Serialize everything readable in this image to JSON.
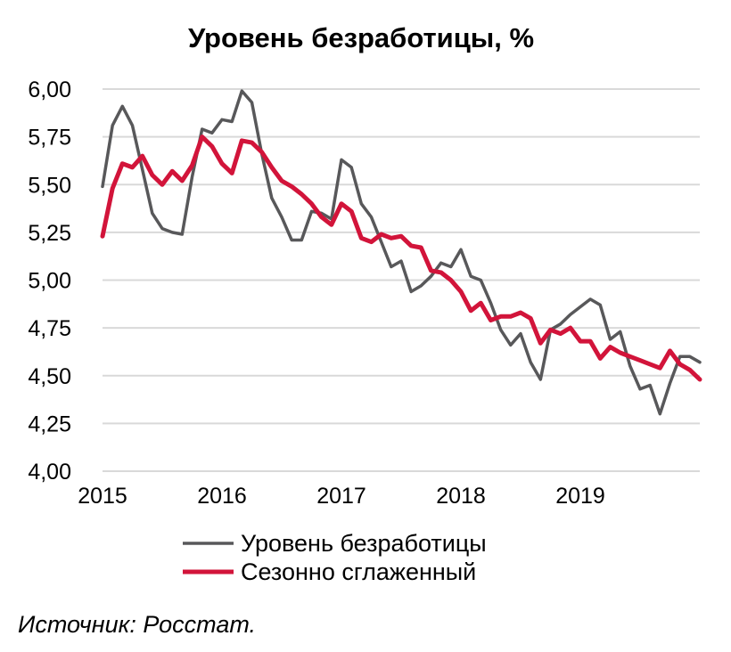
{
  "chart_data": {
    "type": "line",
    "title": "Уровень безработицы, %",
    "xlabel": "",
    "ylabel": "",
    "ylim": [
      4.0,
      6.0
    ],
    "y_ticks": [
      "4,00",
      "4,25",
      "4,50",
      "4,75",
      "5,00",
      "5,25",
      "5,50",
      "5,75",
      "6,00"
    ],
    "x_ticks": [
      "2015",
      "2016",
      "2017",
      "2018",
      "2019"
    ],
    "x_range": [
      2015.0,
      2020.0
    ],
    "grid": "horizontal",
    "legend_position": "bottom",
    "series": [
      {
        "name": "Уровень безработицы",
        "color": "#58585a",
        "values": [
          5.49,
          5.81,
          5.91,
          5.81,
          5.58,
          5.35,
          5.27,
          5.25,
          5.24,
          5.54,
          5.79,
          5.77,
          5.84,
          5.83,
          5.99,
          5.93,
          5.66,
          5.43,
          5.33,
          5.21,
          5.21,
          5.36,
          5.35,
          5.32,
          5.63,
          5.59,
          5.4,
          5.33,
          5.2,
          5.07,
          5.1,
          4.94,
          4.97,
          5.02,
          5.09,
          5.07,
          5.16,
          5.02,
          5.0,
          4.88,
          4.74,
          4.66,
          4.72,
          4.57,
          4.48,
          4.74,
          4.77,
          4.82,
          4.86,
          4.9,
          4.87,
          4.69,
          4.73,
          4.55,
          4.43,
          4.45,
          4.3,
          4.46,
          4.6,
          4.6,
          4.57
        ]
      },
      {
        "name": "Сезонно сглаженный",
        "color": "#d2143a",
        "values": [
          5.23,
          5.48,
          5.61,
          5.59,
          5.65,
          5.55,
          5.5,
          5.57,
          5.52,
          5.6,
          5.75,
          5.7,
          5.61,
          5.56,
          5.73,
          5.72,
          5.67,
          5.59,
          5.52,
          5.49,
          5.45,
          5.4,
          5.33,
          5.29,
          5.4,
          5.36,
          5.22,
          5.2,
          5.24,
          5.22,
          5.23,
          5.18,
          5.17,
          5.05,
          5.04,
          5.0,
          4.94,
          4.84,
          4.88,
          4.79,
          4.81,
          4.81,
          4.83,
          4.8,
          4.67,
          4.74,
          4.72,
          4.75,
          4.68,
          4.68,
          4.59,
          4.65,
          4.62,
          4.6,
          4.58,
          4.56,
          4.54,
          4.63,
          4.56,
          4.53,
          4.48
        ]
      }
    ]
  },
  "source_text": "Источник: Росстат."
}
